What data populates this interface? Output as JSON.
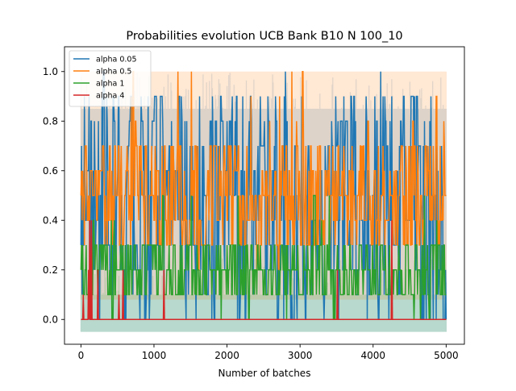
{
  "chart_data": {
    "type": "line",
    "title": "Probabilities evolution UCB Bank B10 N 100_10",
    "xlabel": "Number of batches",
    "ylabel": "",
    "xlim": [
      -225,
      5250
    ],
    "ylim": [
      -0.1,
      1.1
    ],
    "x_ticks": [
      0,
      1000,
      2000,
      3000,
      4000,
      5000
    ],
    "y_ticks": [
      0.0,
      0.2,
      0.4,
      0.6,
      0.8,
      1.0
    ],
    "x_tick_labels": [
      "0",
      "1000",
      "2000",
      "3000",
      "4000",
      "5000"
    ],
    "y_tick_labels": [
      "0.0",
      "0.2",
      "0.4",
      "0.6",
      "0.8",
      "1.0"
    ],
    "grid": false,
    "legend_position": "top-left",
    "n_batches": 5000,
    "series": [
      {
        "name": "alpha 0.05",
        "color": "#1f77b4",
        "levels": [
          0.0,
          0.1,
          0.2,
          0.3,
          0.4,
          0.5,
          0.6,
          0.7,
          0.8,
          0.9,
          1.0
        ],
        "band": [
          -0.05,
          0.85
        ],
        "dominant_range": [
          0.0,
          0.9
        ]
      },
      {
        "name": "alpha 0.5",
        "color": "#ff7f0e",
        "levels": [
          0.2,
          0.3,
          0.4,
          0.5,
          0.6,
          0.7,
          0.8,
          0.9,
          1.0
        ],
        "band": [
          0.08,
          1.0
        ],
        "dominant_range": [
          0.3,
          0.7
        ]
      },
      {
        "name": "alpha 1",
        "color": "#2ca02c",
        "levels": [
          0.0,
          0.1,
          0.2,
          0.3,
          0.4,
          0.5
        ],
        "band": [
          -0.05,
          0.1
        ],
        "dominant_range": [
          0.1,
          0.3
        ]
      },
      {
        "name": "alpha 4",
        "color": "#d62728",
        "levels": [
          0.0,
          0.1,
          0.2,
          0.4
        ],
        "band": [
          0.0,
          0.0
        ],
        "dominant_range": [
          0.0,
          0.0
        ]
      }
    ]
  }
}
